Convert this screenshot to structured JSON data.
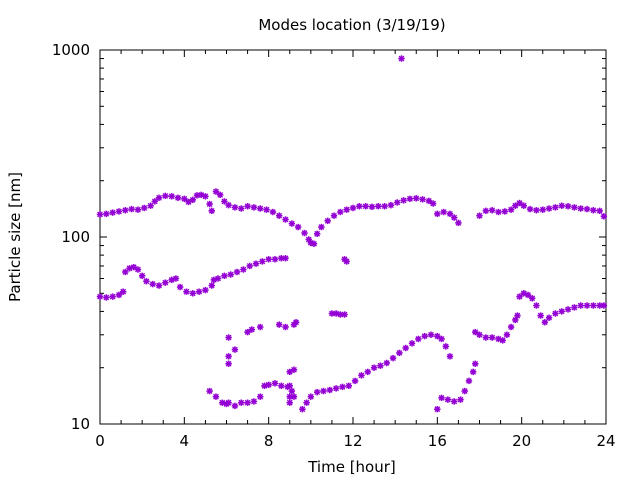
{
  "chart_data": {
    "type": "scatter",
    "title": "Modes location (3/19/19)",
    "xlabel": "Time [hour]",
    "ylabel": "Particle size [nm]",
    "xlim": [
      0,
      24
    ],
    "ylim": [
      10,
      1000
    ],
    "yscale": "log",
    "grid": false,
    "legend": "none",
    "x_ticks": [
      0,
      4,
      8,
      12,
      16,
      20,
      24
    ],
    "x_tick_labels": [
      "0",
      "4",
      "8",
      "12",
      "16",
      "20",
      "24"
    ],
    "y_ticks": [
      10,
      100,
      1000
    ],
    "y_tick_labels": [
      "10",
      "100",
      "1000"
    ],
    "marker_color": "#9400d3",
    "series": [
      {
        "points": [
          [
            0.0,
            132
          ],
          [
            0.3,
            133
          ],
          [
            0.6,
            135
          ],
          [
            0.9,
            137
          ],
          [
            1.2,
            139
          ],
          [
            1.5,
            141
          ],
          [
            1.8,
            140
          ],
          [
            2.1,
            143
          ],
          [
            2.4,
            147
          ],
          [
            2.6,
            155
          ],
          [
            2.8,
            162
          ],
          [
            3.1,
            166
          ],
          [
            3.4,
            165
          ],
          [
            3.7,
            162
          ],
          [
            4.0,
            160
          ],
          [
            4.2,
            154
          ],
          [
            4.4,
            158
          ],
          [
            4.6,
            167
          ],
          [
            4.8,
            168
          ],
          [
            5.0,
            165
          ],
          [
            5.2,
            150
          ],
          [
            5.3,
            138
          ],
          [
            5.5,
            175
          ],
          [
            5.7,
            168
          ],
          [
            5.9,
            155
          ],
          [
            6.1,
            148
          ],
          [
            6.4,
            144
          ],
          [
            6.7,
            142
          ],
          [
            7.0,
            146
          ],
          [
            7.3,
            144
          ],
          [
            7.6,
            142
          ],
          [
            7.9,
            140
          ],
          [
            8.2,
            136
          ],
          [
            8.5,
            130
          ],
          [
            8.8,
            124
          ],
          [
            9.1,
            118
          ],
          [
            9.4,
            113
          ],
          [
            9.7,
            105
          ],
          [
            9.9,
            97
          ],
          [
            10.0,
            93
          ],
          [
            10.15,
            92
          ],
          [
            10.3,
            104
          ],
          [
            10.5,
            113
          ],
          [
            10.8,
            122
          ],
          [
            11.1,
            130
          ],
          [
            11.4,
            136
          ],
          [
            11.7,
            140
          ],
          [
            12.0,
            143
          ],
          [
            12.3,
            146
          ],
          [
            12.6,
            146
          ],
          [
            12.9,
            145
          ],
          [
            13.2,
            146
          ],
          [
            13.5,
            146
          ],
          [
            13.8,
            148
          ],
          [
            14.1,
            153
          ],
          [
            14.4,
            157
          ],
          [
            14.7,
            160
          ],
          [
            15.0,
            161
          ],
          [
            15.3,
            159
          ],
          [
            15.6,
            156
          ],
          [
            15.8,
            151
          ],
          [
            16.0,
            133
          ],
          [
            16.3,
            136
          ],
          [
            16.6,
            133
          ],
          [
            16.8,
            127
          ],
          [
            17.0,
            119
          ],
          [
            18.0,
            130
          ],
          [
            18.3,
            138
          ],
          [
            18.6,
            139
          ],
          [
            18.9,
            136
          ],
          [
            19.2,
            137
          ],
          [
            19.5,
            140
          ],
          [
            19.7,
            147
          ],
          [
            19.9,
            152
          ],
          [
            20.1,
            147
          ],
          [
            20.4,
            141
          ],
          [
            20.7,
            139
          ],
          [
            21.0,
            140
          ],
          [
            21.3,
            142
          ],
          [
            21.6,
            144
          ],
          [
            21.9,
            147
          ],
          [
            22.2,
            146
          ],
          [
            22.5,
            144
          ],
          [
            22.8,
            142
          ],
          [
            23.1,
            141
          ],
          [
            23.4,
            139
          ],
          [
            23.7,
            138
          ],
          [
            23.9,
            129
          ]
        ]
      },
      {
        "points": [
          [
            0.0,
            48
          ],
          [
            0.3,
            47.5
          ],
          [
            0.6,
            48
          ],
          [
            0.9,
            49
          ],
          [
            1.1,
            51
          ],
          [
            1.2,
            65
          ],
          [
            1.4,
            68
          ],
          [
            1.6,
            69
          ],
          [
            1.8,
            67
          ],
          [
            2.0,
            62
          ],
          [
            2.2,
            58
          ],
          [
            2.5,
            56
          ],
          [
            2.8,
            55
          ],
          [
            3.1,
            57
          ],
          [
            3.4,
            59
          ],
          [
            3.6,
            60
          ],
          [
            3.8,
            54
          ],
          [
            4.1,
            51
          ],
          [
            4.4,
            50
          ],
          [
            4.7,
            51
          ],
          [
            5.0,
            52
          ],
          [
            5.3,
            55
          ],
          [
            5.4,
            59
          ],
          [
            5.6,
            60
          ],
          [
            5.9,
            62
          ],
          [
            6.2,
            63
          ],
          [
            6.5,
            65
          ],
          [
            6.8,
            67
          ],
          [
            7.1,
            70
          ],
          [
            7.4,
            72
          ],
          [
            7.7,
            74
          ],
          [
            8.0,
            76
          ],
          [
            8.3,
            76
          ],
          [
            8.6,
            77
          ],
          [
            8.8,
            77
          ],
          [
            11.0,
            39
          ],
          [
            11.2,
            39
          ],
          [
            11.4,
            38.5
          ],
          [
            11.6,
            38.5
          ],
          [
            11.6,
            76
          ],
          [
            11.7,
            74
          ],
          [
            17.8,
            31
          ],
          [
            18.0,
            30
          ],
          [
            18.3,
            29
          ],
          [
            18.6,
            29
          ],
          [
            18.9,
            28.5
          ],
          [
            19.1,
            28
          ],
          [
            19.3,
            30
          ],
          [
            19.5,
            33
          ],
          [
            19.7,
            36
          ],
          [
            19.8,
            38
          ],
          [
            19.9,
            48
          ],
          [
            20.1,
            50
          ],
          [
            20.3,
            49
          ],
          [
            20.5,
            47
          ],
          [
            20.7,
            43
          ],
          [
            20.9,
            38
          ],
          [
            21.1,
            35
          ],
          [
            21.3,
            37
          ],
          [
            21.6,
            39
          ],
          [
            21.9,
            40
          ],
          [
            22.2,
            41
          ],
          [
            22.5,
            42
          ],
          [
            22.8,
            43
          ],
          [
            23.1,
            43
          ],
          [
            23.4,
            43
          ],
          [
            23.7,
            43
          ],
          [
            23.9,
            43
          ]
        ]
      },
      {
        "points": [
          [
            5.2,
            15
          ],
          [
            5.5,
            14
          ],
          [
            5.8,
            13
          ],
          [
            6.0,
            12.8
          ],
          [
            6.1,
            13
          ],
          [
            6.4,
            12.5
          ],
          [
            6.7,
            13
          ],
          [
            7.0,
            13
          ],
          [
            7.3,
            13.2
          ],
          [
            7.6,
            14
          ],
          [
            7.8,
            16
          ],
          [
            8.0,
            16.2
          ],
          [
            8.3,
            16.5
          ],
          [
            8.6,
            16
          ],
          [
            8.9,
            15.8
          ],
          [
            9.0,
            16
          ],
          [
            9.1,
            15
          ],
          [
            9.2,
            14
          ],
          [
            9.0,
            14
          ],
          [
            9.0,
            13
          ],
          [
            6.1,
            29
          ],
          [
            6.1,
            23
          ],
          [
            6.1,
            21
          ],
          [
            6.4,
            25
          ],
          [
            7.0,
            31
          ],
          [
            7.2,
            32
          ],
          [
            7.6,
            33
          ],
          [
            8.5,
            34
          ],
          [
            8.8,
            33
          ],
          [
            9.2,
            34
          ],
          [
            9.3,
            35
          ],
          [
            9.0,
            19
          ],
          [
            9.2,
            19.5
          ],
          [
            9.6,
            12
          ],
          [
            9.8,
            13
          ],
          [
            10.0,
            14
          ],
          [
            10.3,
            14.8
          ],
          [
            10.6,
            15
          ],
          [
            10.9,
            15.2
          ],
          [
            11.2,
            15.5
          ],
          [
            11.5,
            15.8
          ],
          [
            11.8,
            16
          ],
          [
            12.1,
            17
          ],
          [
            12.4,
            18.2
          ],
          [
            12.7,
            19
          ],
          [
            13.0,
            20
          ],
          [
            13.3,
            20.5
          ],
          [
            13.6,
            21.2
          ],
          [
            13.9,
            22.5
          ],
          [
            14.2,
            24
          ],
          [
            14.5,
            25.5
          ],
          [
            14.8,
            27
          ],
          [
            15.1,
            28.5
          ],
          [
            15.4,
            29.5
          ],
          [
            15.7,
            30
          ],
          [
            16.0,
            29.5
          ],
          [
            16.2,
            28.5
          ],
          [
            16.4,
            26
          ],
          [
            16.6,
            23
          ],
          [
            16.0,
            12
          ],
          [
            16.2,
            13.8
          ],
          [
            16.5,
            13.5
          ],
          [
            16.8,
            13.2
          ],
          [
            17.1,
            13.5
          ],
          [
            17.3,
            15
          ],
          [
            17.5,
            17
          ],
          [
            17.7,
            19
          ],
          [
            17.8,
            21
          ]
        ]
      }
    ]
  }
}
